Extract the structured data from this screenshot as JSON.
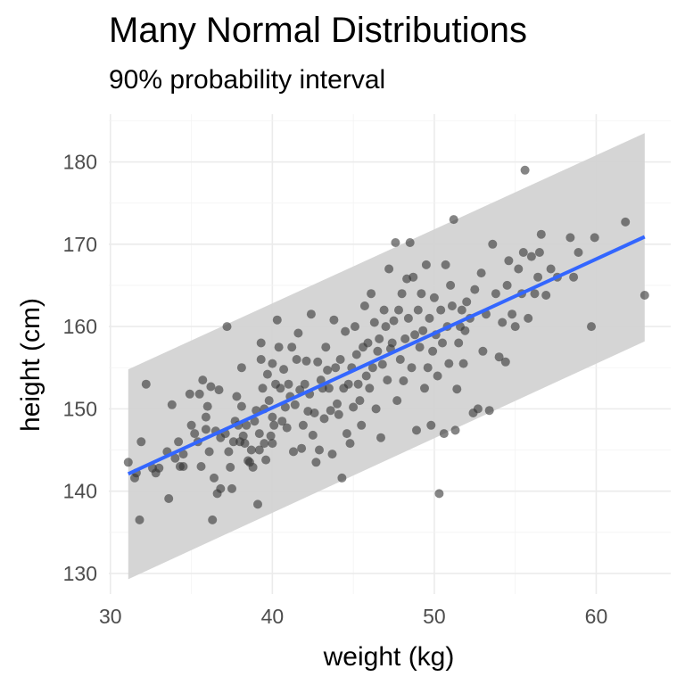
{
  "chart_data": {
    "type": "scatter",
    "title": "Many Normal Distributions",
    "subtitle": "90% probability interval",
    "xlabel": "weight (kg)",
    "ylabel": "height (cm)",
    "xlim": [
      29.9,
      64.6
    ],
    "ylim": [
      127.5,
      185.8
    ],
    "x_ticks": [
      30,
      40,
      50,
      60
    ],
    "y_ticks": [
      130,
      140,
      150,
      160,
      170,
      180
    ],
    "x_tick_labels": [
      "30",
      "40",
      "50",
      "60"
    ],
    "y_tick_labels": [
      "130",
      "140",
      "150",
      "160",
      "170",
      "180"
    ],
    "grid": true,
    "regression_line": {
      "x": [
        31.1,
        62.99
      ],
      "y": [
        142.1,
        170.9
      ],
      "color": "#3366ff"
    },
    "interval_band": {
      "probability": 0.9,
      "x": [
        31.1,
        62.99
      ],
      "lower": [
        129.3,
        158.2
      ],
      "upper": [
        154.8,
        183.5
      ],
      "color": "#d3d3d3"
    },
    "points_color": "#333333",
    "points": [
      [
        31.1,
        143.5
      ],
      [
        31.5,
        141.6
      ],
      [
        31.6,
        142.2
      ],
      [
        31.8,
        136.5
      ],
      [
        31.9,
        146.0
      ],
      [
        32.2,
        153.0
      ],
      [
        32.6,
        142.8
      ],
      [
        32.8,
        142.2
      ],
      [
        33.0,
        142.8
      ],
      [
        33.6,
        139.1
      ],
      [
        33.5,
        144.8
      ],
      [
        33.8,
        150.5
      ],
      [
        34.0,
        144.0
      ],
      [
        34.2,
        146.0
      ],
      [
        34.3,
        143.0
      ],
      [
        34.5,
        143.0
      ],
      [
        34.5,
        144.5
      ],
      [
        34.9,
        151.8
      ],
      [
        35.0,
        148.0
      ],
      [
        35.2,
        147.0
      ],
      [
        35.4,
        146.0
      ],
      [
        35.5,
        151.8
      ],
      [
        35.7,
        153.5
      ],
      [
        35.6,
        143.0
      ],
      [
        35.9,
        147.5
      ],
      [
        35.9,
        149.0
      ],
      [
        36.0,
        150.3
      ],
      [
        36.1,
        144.8
      ],
      [
        36.2,
        152.7
      ],
      [
        36.3,
        136.5
      ],
      [
        36.4,
        141.6
      ],
      [
        36.5,
        147.3
      ],
      [
        36.6,
        139.7
      ],
      [
        36.7,
        152.3
      ],
      [
        36.8,
        140.3
      ],
      [
        36.8,
        146.5
      ],
      [
        37.1,
        147.0
      ],
      [
        37.2,
        160.0
      ],
      [
        37.3,
        144.8
      ],
      [
        37.4,
        142.9
      ],
      [
        37.5,
        140.3
      ],
      [
        37.6,
        146.0
      ],
      [
        37.7,
        148.5
      ],
      [
        37.8,
        151.5
      ],
      [
        37.9,
        148.0
      ],
      [
        38.0,
        146.0
      ],
      [
        38.1,
        155.0
      ],
      [
        38.1,
        150.3
      ],
      [
        38.2,
        146.7
      ],
      [
        38.3,
        145.8
      ],
      [
        38.4,
        148.0
      ],
      [
        38.5,
        143.7
      ],
      [
        38.6,
        143.5
      ],
      [
        38.7,
        145.0
      ],
      [
        38.8,
        142.9
      ],
      [
        38.9,
        148.5
      ],
      [
        39.0,
        149.8
      ],
      [
        39.1,
        138.4
      ],
      [
        39.2,
        147.0
      ],
      [
        39.2,
        145.0
      ],
      [
        39.3,
        158.0
      ],
      [
        39.3,
        156.0
      ],
      [
        39.4,
        152.5
      ],
      [
        39.5,
        150.0
      ],
      [
        39.5,
        145.8
      ],
      [
        39.6,
        143.8
      ],
      [
        39.7,
        154.2
      ],
      [
        39.8,
        151.0
      ],
      [
        39.9,
        146.7
      ],
      [
        40.0,
        155.5
      ],
      [
        40.0,
        149.0
      ],
      [
        40.0,
        145.8
      ],
      [
        40.1,
        148.0
      ],
      [
        40.2,
        153.0
      ],
      [
        40.3,
        160.8
      ],
      [
        40.4,
        157.5
      ],
      [
        40.5,
        152.5
      ],
      [
        40.6,
        148.5
      ],
      [
        40.7,
        154.8
      ],
      [
        40.8,
        150.2
      ],
      [
        40.9,
        147.7
      ],
      [
        41.0,
        153.0
      ],
      [
        41.1,
        151.5
      ],
      [
        41.2,
        157.5
      ],
      [
        41.3,
        144.8
      ],
      [
        41.4,
        150.5
      ],
      [
        41.5,
        156.0
      ],
      [
        41.6,
        159.2
      ],
      [
        41.7,
        152.3
      ],
      [
        41.8,
        145.2
      ],
      [
        41.9,
        148.0
      ],
      [
        42.0,
        153.0
      ],
      [
        42.1,
        155.8
      ],
      [
        42.2,
        149.7
      ],
      [
        42.3,
        151.8
      ],
      [
        42.4,
        161.5
      ],
      [
        42.5,
        146.8
      ],
      [
        42.6,
        149.5
      ],
      [
        42.7,
        143.5
      ],
      [
        42.8,
        155.7
      ],
      [
        42.9,
        145.0
      ],
      [
        43.0,
        153.5
      ],
      [
        43.1,
        152.5
      ],
      [
        43.2,
        148.8
      ],
      [
        43.3,
        157.5
      ],
      [
        43.4,
        154.7
      ],
      [
        43.5,
        152.5
      ],
      [
        43.6,
        149.8
      ],
      [
        43.7,
        144.5
      ],
      [
        43.8,
        160.8
      ],
      [
        43.9,
        155.0
      ],
      [
        44.0,
        150.6
      ],
      [
        44.1,
        149.3
      ],
      [
        44.2,
        156.0
      ],
      [
        44.3,
        141.6
      ],
      [
        44.4,
        152.5
      ],
      [
        44.5,
        159.4
      ],
      [
        44.6,
        147.0
      ],
      [
        44.7,
        153.0
      ],
      [
        44.8,
        145.8
      ],
      [
        44.9,
        155.0
      ],
      [
        45.0,
        150.2
      ],
      [
        45.1,
        160.0
      ],
      [
        45.2,
        156.6
      ],
      [
        45.3,
        153.0
      ],
      [
        45.4,
        151.0
      ],
      [
        45.5,
        148.0
      ],
      [
        45.6,
        157.5
      ],
      [
        45.7,
        162.5
      ],
      [
        45.8,
        154.0
      ],
      [
        45.9,
        158.0
      ],
      [
        46.0,
        152.5
      ],
      [
        46.1,
        164.0
      ],
      [
        46.2,
        155.0
      ],
      [
        46.3,
        160.5
      ],
      [
        46.4,
        150.0
      ],
      [
        46.5,
        157.0
      ],
      [
        46.6,
        158.5
      ],
      [
        46.7,
        146.5
      ],
      [
        46.8,
        155.4
      ],
      [
        46.9,
        162.0
      ],
      [
        47.0,
        160.0
      ],
      [
        47.1,
        153.5
      ],
      [
        47.2,
        167.0
      ],
      [
        47.3,
        157.3
      ],
      [
        47.4,
        158.0
      ],
      [
        47.5,
        160.7
      ],
      [
        47.6,
        170.2
      ],
      [
        47.7,
        151.0
      ],
      [
        47.8,
        162.0
      ],
      [
        47.9,
        156.0
      ],
      [
        48.0,
        164.0
      ],
      [
        48.1,
        153.4
      ],
      [
        48.2,
        158.5
      ],
      [
        48.3,
        165.8
      ],
      [
        48.4,
        161.0
      ],
      [
        48.5,
        170.2
      ],
      [
        48.6,
        155.0
      ],
      [
        48.7,
        166.0
      ],
      [
        48.8,
        159.0
      ],
      [
        48.9,
        147.4
      ],
      [
        49.0,
        162.0
      ],
      [
        49.1,
        157.5
      ],
      [
        49.2,
        164.0
      ],
      [
        49.3,
        159.5
      ],
      [
        49.4,
        152.5
      ],
      [
        49.5,
        167.5
      ],
      [
        49.6,
        155.0
      ],
      [
        49.7,
        161.0
      ],
      [
        49.8,
        148.0
      ],
      [
        49.9,
        157.0
      ],
      [
        50.0,
        163.5
      ],
      [
        50.1,
        159.0
      ],
      [
        50.2,
        154.0
      ],
      [
        50.3,
        139.7
      ],
      [
        50.4,
        162.0
      ],
      [
        50.5,
        158.0
      ],
      [
        50.6,
        147.0
      ],
      [
        50.7,
        167.5
      ],
      [
        50.8,
        160.0
      ],
      [
        50.9,
        155.5
      ],
      [
        51.0,
        165.0
      ],
      [
        51.1,
        162.5
      ],
      [
        51.2,
        173.0
      ],
      [
        51.3,
        147.4
      ],
      [
        51.4,
        152.4
      ],
      [
        51.5,
        158.0
      ],
      [
        51.6,
        160.0
      ],
      [
        51.7,
        162.0
      ],
      [
        51.8,
        155.5
      ],
      [
        51.9,
        159.5
      ],
      [
        52.0,
        163.0
      ],
      [
        52.2,
        161.0
      ],
      [
        52.4,
        149.5
      ],
      [
        52.5,
        164.5
      ],
      [
        52.7,
        150.0
      ],
      [
        52.9,
        166.5
      ],
      [
        53.0,
        157.0
      ],
      [
        53.2,
        161.5
      ],
      [
        53.4,
        149.8
      ],
      [
        53.6,
        170.0
      ],
      [
        53.8,
        164.0
      ],
      [
        54.0,
        156.3
      ],
      [
        54.2,
        160.5
      ],
      [
        54.4,
        155.7
      ],
      [
        54.5,
        165.0
      ],
      [
        54.6,
        168.0
      ],
      [
        54.8,
        161.5
      ],
      [
        55.0,
        160.0
      ],
      [
        55.2,
        167.0
      ],
      [
        55.4,
        164.0
      ],
      [
        55.5,
        169.0
      ],
      [
        55.6,
        179.0
      ],
      [
        55.8,
        161.0
      ],
      [
        56.0,
        168.5
      ],
      [
        56.2,
        164.0
      ],
      [
        56.4,
        166.0
      ],
      [
        56.5,
        169.0
      ],
      [
        56.6,
        171.2
      ],
      [
        56.9,
        163.8
      ],
      [
        57.2,
        167.0
      ],
      [
        57.6,
        166.0
      ],
      [
        58.4,
        170.8
      ],
      [
        58.6,
        166.0
      ],
      [
        58.9,
        169.0
      ],
      [
        59.7,
        160.0
      ],
      [
        59.9,
        170.8
      ],
      [
        61.8,
        172.7
      ],
      [
        62.99,
        163.8
      ]
    ]
  }
}
